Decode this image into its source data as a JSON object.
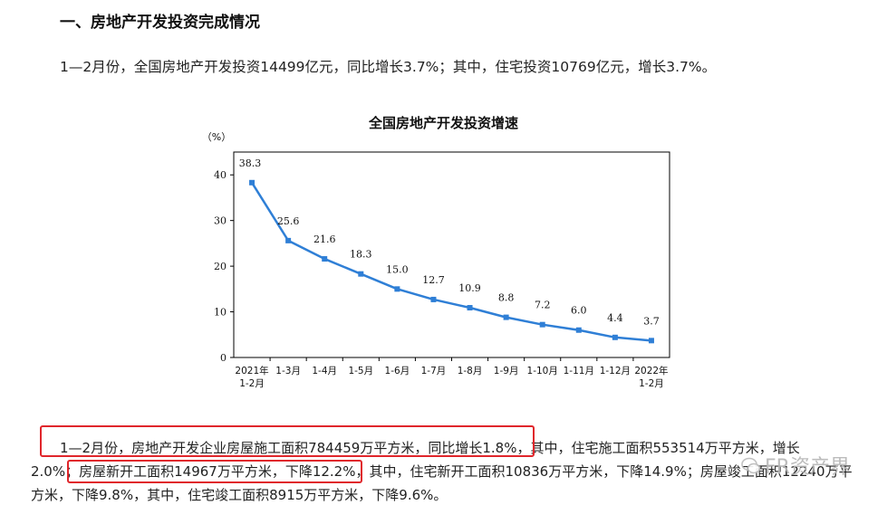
{
  "section_heading": "一、房地产开发投资完成情况",
  "intro_paragraph": "1—2月份，全国房地产开发投资14499亿元，同比增长3.7%；其中，住宅投资10769亿元，增长3.7%。",
  "chart_data": {
    "type": "line",
    "title": "全国房地产开发投资增速",
    "ylabel": "（%）",
    "ylim": [
      0,
      45
    ],
    "yticks": [
      0,
      10,
      20,
      30,
      40
    ],
    "categories": [
      [
        "2021年",
        "1-2月"
      ],
      [
        "1-3月"
      ],
      [
        "1-4月"
      ],
      [
        "1-5月"
      ],
      [
        "1-6月"
      ],
      [
        "1-7月"
      ],
      [
        "1-8月"
      ],
      [
        "1-9月"
      ],
      [
        "1-10月"
      ],
      [
        "1-11月"
      ],
      [
        "1-12月"
      ],
      [
        "2022年",
        "1-2月"
      ]
    ],
    "values": [
      38.3,
      25.6,
      21.6,
      18.3,
      15.0,
      12.7,
      10.9,
      8.8,
      7.2,
      6.0,
      4.4,
      3.7
    ],
    "value_labels": [
      "38.3",
      "25.6",
      "21.6",
      "18.3",
      "15.0",
      "12.7",
      "10.9",
      "8.8",
      "7.2",
      "6.0",
      "4.4",
      "3.7"
    ],
    "color": "#2f7fd6",
    "grid": false
  },
  "body": {
    "line1_highlight": "1—2月份，房地产开发企业房屋施工面积784459万平方米，同比增长1.8%，",
    "line1_rest": "其中，住宅施工面积553514万平方米，增长",
    "line2_start": "2.0%；",
    "line2_highlight": "房屋新开工面积14967万平方米，下降12.2%，",
    "line2_rest": "其中，住宅新开工面积10836万平方米，下降14.9%；房屋竣工面积12240万平",
    "line3": "方米，下降9.8%，其中，住宅竣工面积8915万平方米，下降9.6%。"
  },
  "watermark": "FR资产界",
  "colors": {
    "highlight_box": "#e0262b",
    "line": "#2f7fd6",
    "axis": "#000000"
  }
}
